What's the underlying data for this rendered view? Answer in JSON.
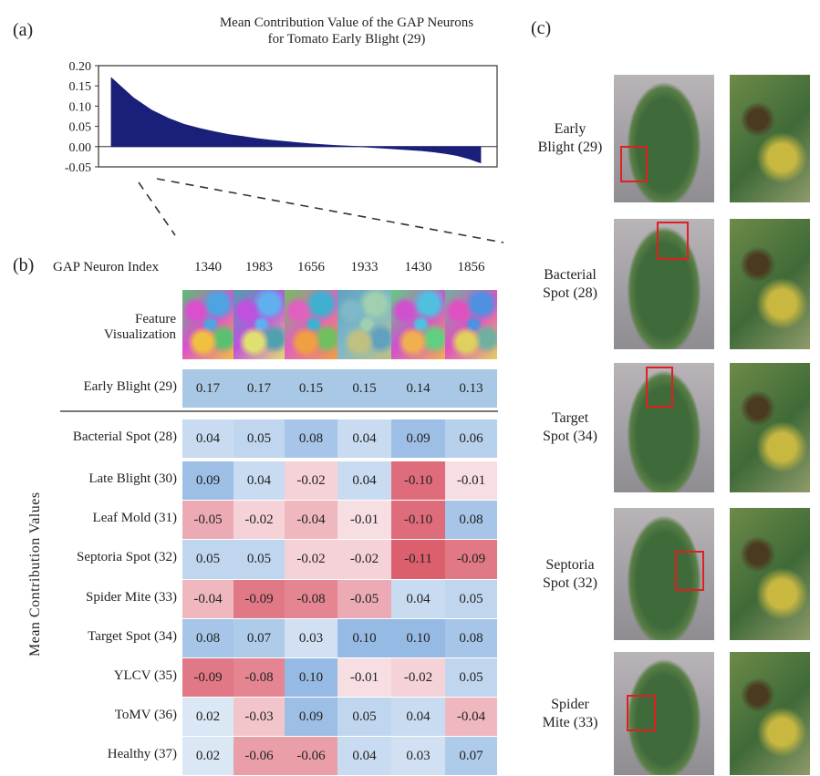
{
  "panel_labels": {
    "a": "(a)",
    "b": "(b)",
    "c": "(c)"
  },
  "chart_data": {
    "type": "area",
    "title_line1": "Mean Contribution Value of the GAP Neurons",
    "title_line2": "for Tomato Early Blight (29)",
    "ylim": [
      -0.05,
      0.2
    ],
    "yticks": [
      "0.20",
      "0.15",
      "0.10",
      "0.05",
      "0.00",
      "-0.05"
    ],
    "y": [
      0.17,
      0.12,
      0.09,
      0.07,
      0.055,
      0.045,
      0.037,
      0.03,
      0.025,
      0.02,
      0.016,
      0.013,
      0.01,
      0.007,
      0.005,
      0.003,
      0.0015,
      0.0,
      -0.002,
      -0.004,
      -0.006,
      -0.008,
      -0.01,
      -0.013,
      -0.017,
      -0.022,
      -0.03,
      -0.04
    ],
    "color": "#1a1f7a"
  },
  "table": {
    "header_label": "GAP Neuron Index",
    "feature_label_1": "Feature",
    "feature_label_2": "Visualization",
    "columns": [
      "1340",
      "1983",
      "1656",
      "1933",
      "1430",
      "1856"
    ],
    "y_axis_label": "Mean Contribution Values",
    "rows": [
      {
        "label": "Early Blight (29)",
        "values": [
          "0.17",
          "0.17",
          "0.15",
          "0.15",
          "0.14",
          "0.13"
        ]
      },
      {
        "label": "Bacterial Spot (28)",
        "values": [
          "0.04",
          "0.05",
          "0.08",
          "0.04",
          "0.09",
          "0.06"
        ]
      },
      {
        "label": "Late Blight (30)",
        "values": [
          "0.09",
          "0.04",
          "-0.02",
          "0.04",
          "-0.10",
          "-0.01"
        ]
      },
      {
        "label": "Leaf Mold (31)",
        "values": [
          "-0.05",
          "-0.02",
          "-0.04",
          "-0.01",
          "-0.10",
          "0.08"
        ]
      },
      {
        "label": "Septoria Spot (32)",
        "values": [
          "0.05",
          "0.05",
          "-0.02",
          "-0.02",
          "-0.11",
          "-0.09"
        ]
      },
      {
        "label": "Spider Mite (33)",
        "values": [
          "-0.04",
          "-0.09",
          "-0.08",
          "-0.05",
          "0.04",
          "0.05"
        ]
      },
      {
        "label": "Target Spot (34)",
        "values": [
          "0.08",
          "0.07",
          "0.03",
          "0.10",
          "0.10",
          "0.08"
        ]
      },
      {
        "label": "YLCV (35)",
        "values": [
          "-0.09",
          "-0.08",
          "0.10",
          "-0.01",
          "-0.02",
          "0.05"
        ]
      },
      {
        "label": "ToMV (36)",
        "values": [
          "0.02",
          "-0.03",
          "0.09",
          "0.05",
          "0.04",
          "-0.04"
        ]
      },
      {
        "label": "Healthy (37)",
        "values": [
          "0.02",
          "-0.06",
          "-0.06",
          "0.04",
          "0.03",
          "0.07"
        ]
      }
    ]
  },
  "leaf_examples": [
    {
      "line1": "Early",
      "line2": "Blight (29)"
    },
    {
      "line1": "Bacterial",
      "line2": "Spot (28)"
    },
    {
      "line1": "Target",
      "line2": "Spot (34)"
    },
    {
      "line1": "Septoria",
      "line2": "Spot (32)"
    },
    {
      "line1": "Spider",
      "line2": "Mite (33)"
    }
  ]
}
